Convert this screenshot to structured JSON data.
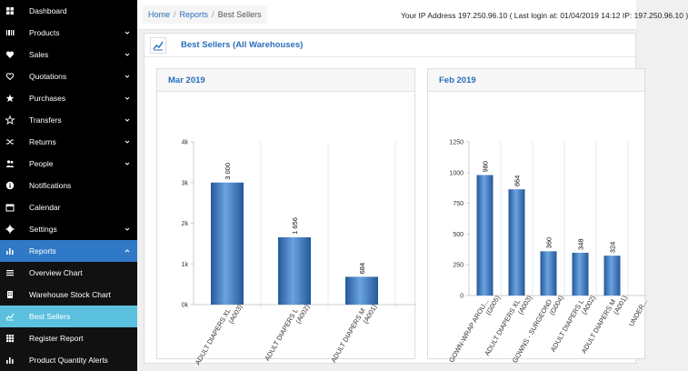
{
  "sidebar": {
    "items": [
      {
        "label": "Dashboard",
        "icon": "dashboard-icon",
        "chevron": false,
        "state": "normal"
      },
      {
        "label": "Products",
        "icon": "barcode-icon",
        "chevron": true,
        "state": "normal"
      },
      {
        "label": "Sales",
        "icon": "heart-icon",
        "chevron": true,
        "state": "normal"
      },
      {
        "label": "Quotations",
        "icon": "heart-outline-icon",
        "chevron": true,
        "state": "normal"
      },
      {
        "label": "Purchases",
        "icon": "star-icon",
        "chevron": true,
        "state": "normal"
      },
      {
        "label": "Transfers",
        "icon": "star-outline-icon",
        "chevron": true,
        "state": "normal"
      },
      {
        "label": "Returns",
        "icon": "random-icon",
        "chevron": true,
        "state": "normal"
      },
      {
        "label": "People",
        "icon": "users-icon",
        "chevron": true,
        "state": "normal"
      },
      {
        "label": "Notifications",
        "icon": "info-icon",
        "chevron": false,
        "state": "normal"
      },
      {
        "label": "Calendar",
        "icon": "calendar-icon",
        "chevron": false,
        "state": "normal"
      },
      {
        "label": "Settings",
        "icon": "gear-icon",
        "chevron": true,
        "state": "normal"
      },
      {
        "label": "Reports",
        "icon": "bar-chart-icon",
        "chevron": true,
        "state": "active-parent"
      },
      {
        "label": "Overview Chart",
        "icon": "list-icon",
        "chevron": false,
        "state": "sub"
      },
      {
        "label": "Warehouse Stock Chart",
        "icon": "building-icon",
        "chevron": false,
        "state": "sub"
      },
      {
        "label": "Best Sellers",
        "icon": "line-chart-icon",
        "chevron": false,
        "state": "current"
      },
      {
        "label": "Register Report",
        "icon": "th-icon",
        "chevron": false,
        "state": "sub"
      },
      {
        "label": "Product Quantity Alerts",
        "icon": "bar-chart-icon",
        "chevron": false,
        "state": "sub"
      }
    ]
  },
  "breadcrumb": {
    "home": "Home",
    "reports": "Reports",
    "current": "Best Sellers",
    "sep": "/"
  },
  "ip_info": "Your IP Address 197.250.96.10 ( Last login at: 01/04/2019 14:12 IP: 197.250.96.10 )",
  "page": {
    "title": "Best Sellers (All Warehouses)",
    "icon": "line-chart-icon"
  },
  "colors": {
    "accent": "#2a6ebb",
    "bar": "#3a77c2",
    "bar_dark": "#25599a",
    "bar_light": "#6ba3e0",
    "sidebar_active": "#3079c6",
    "sidebar_current": "#5bc0de"
  },
  "chart_data": [
    {
      "type": "bar",
      "title": "Mar 2019",
      "categories": [
        "ADULT DIAPERS XL (A003)",
        "ADULT DIAPERS L (A002)",
        "ADULT DIAPERS M (A001)"
      ],
      "values": [
        3000,
        1656,
        684
      ],
      "data_labels": [
        "3 000",
        "1 656",
        "684"
      ],
      "yticks": [
        0,
        1000,
        2000,
        3000,
        4000
      ],
      "ytick_labels": [
        "0k",
        "1k",
        "2k",
        "3k",
        "4k"
      ],
      "ylim": [
        0,
        4000
      ]
    },
    {
      "type": "bar",
      "title": "Feb 2019",
      "categories": [
        "GOWN-WRAP AROU... (G005)",
        "ADULT DIAPERS XL (A003)",
        "GOWNS - SURGEOND (G004)",
        "ADULT DIAPERS L (A002)",
        "ADULT DIAPERS M (A001)",
        "UNDER..."
      ],
      "values": [
        980,
        864,
        360,
        348,
        324,
        null
      ],
      "data_labels": [
        "980",
        "864",
        "360",
        "348",
        "324",
        ""
      ],
      "yticks": [
        0,
        250,
        500,
        750,
        1000,
        1250
      ],
      "ytick_labels": [
        "0",
        "250",
        "500",
        "750",
        "1000",
        "1250"
      ],
      "ylim": [
        0,
        1250
      ]
    }
  ]
}
